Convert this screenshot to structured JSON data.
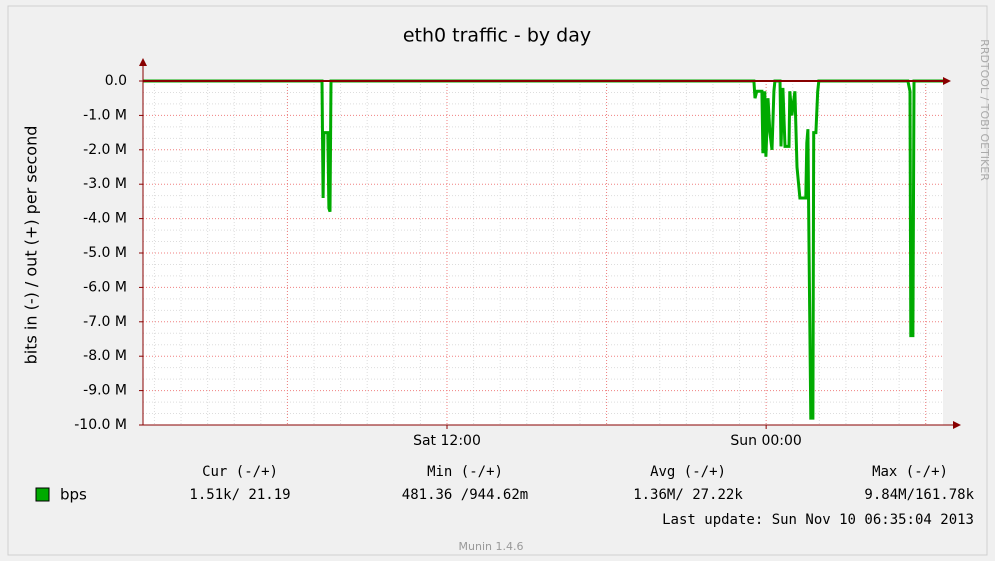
{
  "chart_data": {
    "type": "line",
    "title": "eth0 traffic - by day",
    "ylabel": "bits in (-) / out (+) per second",
    "watermark": "RRDTOOL / TOBI OETIKER",
    "x": [
      0.57,
      7.3,
      7.34,
      7.37,
      7.52,
      7.56,
      7.6,
      7.64,
      23.54,
      23.58,
      23.65,
      23.84,
      23.88,
      23.95,
      23.99,
      24.07,
      24.14,
      24.22,
      24.29,
      24.33,
      24.52,
      24.56,
      24.63,
      24.71,
      24.86,
      24.89,
      24.97,
      25.08,
      25.16,
      25.27,
      25.49,
      25.53,
      25.57,
      25.61,
      25.68,
      25.76,
      25.79,
      25.87,
      25.94,
      25.98,
      29.33,
      29.41,
      29.44,
      29.52,
      29.56,
      30.65
    ],
    "series": [
      {
        "name": "bps",
        "color": "#00aa00",
        "values": [
          0,
          0,
          -3400000,
          -1500000,
          -1500000,
          -3700000,
          -3800000,
          0,
          0,
          -500000,
          -300000,
          -300000,
          -2100000,
          -300000,
          -2200000,
          -500000,
          -1500000,
          -2000000,
          -300000,
          0,
          0,
          -1900000,
          -200000,
          -1900000,
          -1900000,
          -300000,
          -1000000,
          -300000,
          -2500000,
          -3400000,
          -3400000,
          -1800000,
          -1400000,
          -4800000,
          -9800000,
          -9800000,
          -1500000,
          -1500000,
          -300000,
          0,
          0,
          -300000,
          -7400000,
          -7400000,
          0,
          0
        ]
      }
    ],
    "xlim": [
      0.57,
      30.65
    ],
    "xticks": [
      {
        "value": 12,
        "label": "Sat 12:00"
      },
      {
        "value": 24,
        "label": "Sun 00:00"
      }
    ],
    "xgrid": [
      6,
      12,
      18,
      24,
      30
    ],
    "ylim": [
      -10000000,
      0
    ],
    "yticks": [
      {
        "value": 0,
        "label": "0.0"
      },
      {
        "value": -1000000,
        "label": "-1.0 M"
      },
      {
        "value": -2000000,
        "label": "-2.0 M"
      },
      {
        "value": -3000000,
        "label": "-3.0 M"
      },
      {
        "value": -4000000,
        "label": "-4.0 M"
      },
      {
        "value": -5000000,
        "label": "-5.0 M"
      },
      {
        "value": -6000000,
        "label": "-6.0 M"
      },
      {
        "value": -7000000,
        "label": "-7.0 M"
      },
      {
        "value": -8000000,
        "label": "-8.0 M"
      },
      {
        "value": -9000000,
        "label": "-9.0 M"
      },
      {
        "value": -10000000,
        "label": "-10.0 M"
      }
    ],
    "grid": true,
    "legend": {
      "headers": [
        "Cur (-/+)",
        "Min (-/+)",
        "Avg (-/+)",
        "Max (-/+)"
      ],
      "row": [
        "1.51k/ 21.19",
        "481.36 /944.62m",
        "1.36M/ 27.22k",
        "9.84M/161.78k"
      ]
    },
    "last_update": "Last update: Sun Nov 10 06:35:04 2013",
    "footer": "Munin 1.4.6"
  }
}
